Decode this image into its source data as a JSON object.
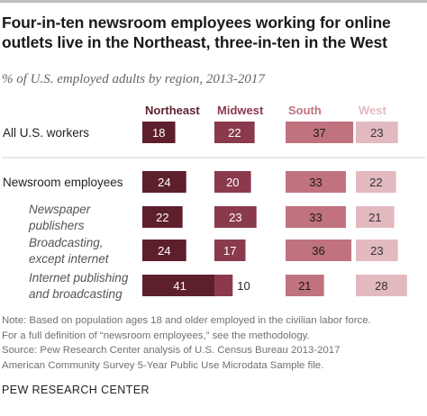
{
  "title": "Four-in-ten newsroom employees working for online outlets live in the Northeast, three-in-ten in the West",
  "subtitle": "% of U.S. employed adults by region, 2013-2017",
  "chart_data": {
    "type": "bar",
    "columns": [
      "Northeast",
      "Midwest",
      "South",
      "West"
    ],
    "column_colors": [
      "#5e1f2c",
      "#8b3a4d",
      "#c0727f",
      "#e2b9bf"
    ],
    "header_colors": [
      "#5e1f2c",
      "#8b3a4d",
      "#c0727f",
      "#e2b9bf"
    ],
    "rows": [
      {
        "label": "All U.S. workers",
        "italic": false,
        "values": [
          18,
          22,
          37,
          23
        ]
      },
      {
        "label": "Newsroom employees",
        "italic": false,
        "values": [
          24,
          20,
          33,
          22
        ]
      },
      {
        "label": "Newspaper publishers",
        "label_lines": [
          "Newspaper",
          "publishers"
        ],
        "italic": true,
        "values": [
          22,
          23,
          33,
          21
        ]
      },
      {
        "label": "Broadcasting, except internet",
        "label_lines": [
          "Broadcasting,",
          "except internet"
        ],
        "italic": true,
        "values": [
          24,
          17,
          36,
          23
        ]
      },
      {
        "label": "Internet publishing and broadcasting",
        "label_lines": [
          "Internet publishing",
          "and broadcasting"
        ],
        "italic": true,
        "values": [
          41,
          10,
          21,
          28
        ]
      }
    ]
  },
  "notes": [
    "Note: Based on population ages 18 and older employed in the civilian labor force.",
    "For a full definition of “newsroom employees,” see the methodology.",
    "Source: Pew Research Center analysis of U.S. Census Bureau 2013-2017",
    "American Community Survey 5-Year Public Use Microdata Sample file."
  ],
  "brand": "PEW RESEARCH CENTER"
}
